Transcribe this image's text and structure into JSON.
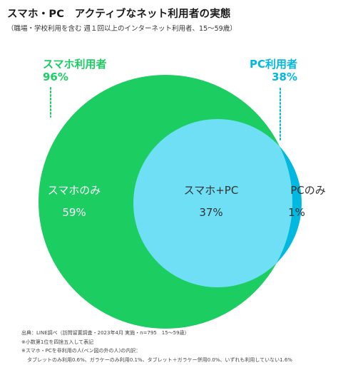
{
  "header": {
    "title": "スマホ・PC　アクティブなネット利用者の実態",
    "subtitle": "（職場・学校利用を含む 週１回以上のインターネット利用者、15〜59歳）"
  },
  "colors": {
    "smartphone": "#1ccd62",
    "pc": "#00b8e0",
    "overlap": "#6edff4",
    "white_text": "#ffffff",
    "dark_text": "#333333"
  },
  "chart_data": {
    "type": "venn",
    "sets": [
      {
        "name": "スマホ利用者",
        "total_label": "96%",
        "value": 96
      },
      {
        "name": "PC利用者",
        "total_label": "38%",
        "value": 38
      }
    ],
    "regions": [
      {
        "name": "スマホのみ",
        "value_label": "59%",
        "value": 59
      },
      {
        "name": "スマホ+PC",
        "value_label": "37%",
        "value": 37
      },
      {
        "name": "PCのみ",
        "value_label": "1%",
        "value": 1
      }
    ]
  },
  "footer": {
    "lines": [
      "出典：LINE調べ（訪問留置調査・2023年4月 実施・n=795　15〜59歳）",
      "※小数第1位を四捨五入して表記",
      "※スマホ・PCを非利用の人(ベン図の外の人)の内訳：",
      "タブレットのみ利用0.6%、ガラケーのみ利用0.1%、タブレット＋ガラケー併用0.0%、いずれも利用していない1.6%"
    ]
  }
}
